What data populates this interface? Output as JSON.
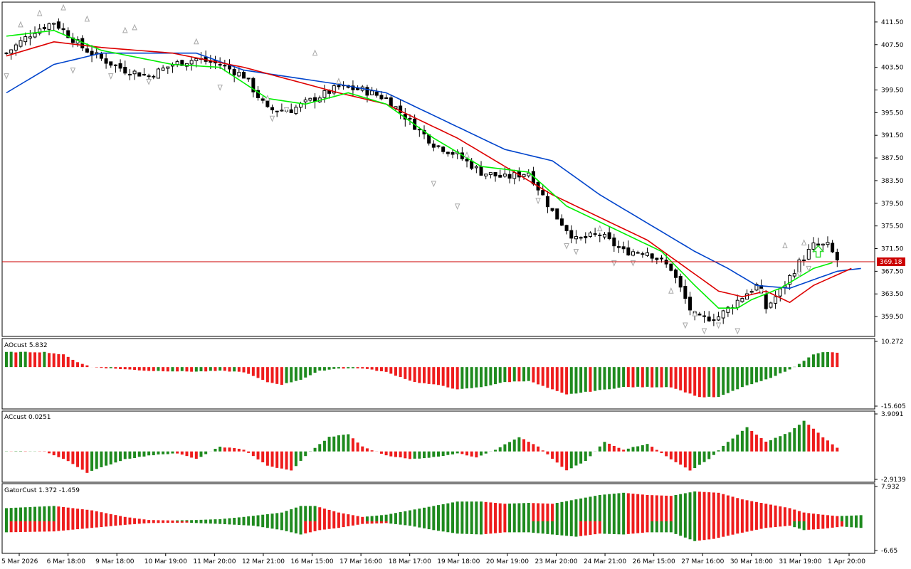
{
  "colors": {
    "background": "#ffffff",
    "frame": "#000000",
    "bull_body": "#ffffff",
    "bear_body": "#000000",
    "alligator_lips": "#00ee00",
    "alligator_teeth": "#dd0000",
    "alligator_jaw": "#0044cc",
    "histogram_up": "#1e8a1e",
    "histogram_down": "#ee1c1c",
    "price_line": "#cc0000",
    "price_tag_bg": "#cc0000",
    "price_tag_text": "#ffffff",
    "fractal": "#a8a8a8",
    "signal_arrow": "#33dd33"
  },
  "chart_data": [
    {
      "type": "candlestick",
      "pane": "main",
      "ylim": [
        356.5,
        414.5
      ],
      "y_ticks": [
        "411.50",
        "407.50",
        "403.50",
        "399.50",
        "395.50",
        "391.50",
        "387.50",
        "383.50",
        "379.50",
        "375.50",
        "371.50",
        "367.50",
        "363.50",
        "359.50"
      ],
      "current_price": "369.18",
      "x_ticks": [
        "5 Mar 2026",
        "6 Mar 18:00",
        "9 Mar 18:00",
        "10 Mar 19:00",
        "11 Mar 20:00",
        "12 Mar 21:00",
        "16 Mar 15:00",
        "17 Mar 16:00",
        "18 Mar 17:00",
        "19 Mar 18:00",
        "20 Mar 19:00",
        "23 Mar 20:00",
        "24 Mar 21:00",
        "26 Mar 15:00",
        "27 Mar 16:00",
        "30 Mar 18:00",
        "31 Mar 19:00",
        "1 Apr 20:00"
      ],
      "close_path": [
        [
          0,
          406
        ],
        [
          6,
          410
        ],
        [
          10,
          411.5
        ],
        [
          16,
          407
        ],
        [
          20,
          405
        ],
        [
          25,
          403
        ],
        [
          30,
          402
        ],
        [
          35,
          404
        ],
        [
          40,
          405
        ],
        [
          45,
          404
        ],
        [
          50,
          402
        ],
        [
          55,
          396
        ],
        [
          60,
          396
        ],
        [
          65,
          398
        ],
        [
          70,
          400
        ],
        [
          75,
          399.5
        ],
        [
          80,
          398
        ],
        [
          85,
          394
        ],
        [
          90,
          390
        ],
        [
          95,
          388
        ],
        [
          100,
          385
        ],
        [
          105,
          384
        ],
        [
          110,
          385
        ],
        [
          115,
          378
        ],
        [
          120,
          373
        ],
        [
          125,
          374
        ],
        [
          130,
          371
        ],
        [
          135,
          371
        ],
        [
          140,
          368
        ],
        [
          145,
          359
        ],
        [
          150,
          359.5
        ],
        [
          155,
          363
        ],
        [
          158,
          365
        ],
        [
          160,
          361
        ],
        [
          163,
          364
        ],
        [
          167,
          369
        ],
        [
          170,
          372
        ],
        [
          173,
          372
        ],
        [
          175,
          369.5
        ]
      ],
      "alligator_jaw": [
        [
          0,
          399
        ],
        [
          10,
          404
        ],
        [
          20,
          406
        ],
        [
          40,
          406
        ],
        [
          50,
          403
        ],
        [
          70,
          400.5
        ],
        [
          80,
          399
        ],
        [
          95,
          393
        ],
        [
          105,
          389
        ],
        [
          115,
          387
        ],
        [
          125,
          381
        ],
        [
          135,
          376
        ],
        [
          145,
          371
        ],
        [
          152,
          368
        ],
        [
          158,
          365
        ],
        [
          165,
          364.5
        ],
        [
          175,
          367.5
        ],
        [
          180,
          368
        ]
      ],
      "alligator_teeth": [
        [
          0,
          405.5
        ],
        [
          10,
          408
        ],
        [
          20,
          407
        ],
        [
          35,
          406
        ],
        [
          50,
          403.5
        ],
        [
          70,
          399
        ],
        [
          80,
          397
        ],
        [
          95,
          391
        ],
        [
          105,
          386
        ],
        [
          115,
          381
        ],
        [
          125,
          377
        ],
        [
          135,
          373
        ],
        [
          145,
          367
        ],
        [
          150,
          364
        ],
        [
          155,
          363
        ],
        [
          160,
          364
        ],
        [
          165,
          362
        ],
        [
          170,
          365
        ],
        [
          178,
          368
        ]
      ],
      "alligator_lips": [
        [
          0,
          409
        ],
        [
          10,
          410
        ],
        [
          20,
          406.5
        ],
        [
          35,
          404
        ],
        [
          45,
          403.5
        ],
        [
          55,
          398
        ],
        [
          63,
          397
        ],
        [
          72,
          399
        ],
        [
          80,
          397
        ],
        [
          90,
          391
        ],
        [
          100,
          386
        ],
        [
          110,
          385
        ],
        [
          118,
          379
        ],
        [
          128,
          375
        ],
        [
          138,
          371
        ],
        [
          145,
          365
        ],
        [
          150,
          361
        ],
        [
          154,
          361
        ],
        [
          157,
          362.5
        ],
        [
          163,
          364.5
        ],
        [
          166,
          366
        ],
        [
          170,
          368
        ],
        [
          174,
          369
        ]
      ],
      "fractals_up": [
        [
          3,
          411
        ],
        [
          7,
          413
        ],
        [
          12,
          414
        ],
        [
          17,
          412
        ],
        [
          25,
          410
        ],
        [
          27,
          410.5
        ],
        [
          40,
          408
        ],
        [
          55,
          398
        ],
        [
          65,
          406
        ],
        [
          70,
          401
        ],
        [
          97,
          388
        ],
        [
          125,
          375
        ],
        [
          140,
          364
        ],
        [
          145,
          360
        ],
        [
          164,
          372
        ],
        [
          168,
          372.5
        ]
      ],
      "fractals_down": [
        [
          0,
          402
        ],
        [
          14,
          403
        ],
        [
          22,
          402
        ],
        [
          30,
          401
        ],
        [
          45,
          400
        ],
        [
          56,
          394.5
        ],
        [
          59,
          396
        ],
        [
          90,
          383
        ],
        [
          95,
          379
        ],
        [
          112,
          380
        ],
        [
          118,
          372
        ],
        [
          120,
          371
        ],
        [
          128,
          369
        ],
        [
          132,
          369
        ],
        [
          143,
          358
        ],
        [
          147,
          357
        ],
        [
          150,
          358
        ],
        [
          154,
          357
        ],
        [
          159,
          364
        ],
        [
          167,
          367
        ],
        [
          169,
          368
        ]
      ],
      "signal_arrow_up_at": 171
    },
    {
      "type": "histogram",
      "pane": "AO",
      "label": "AOcust 5.832",
      "ylim": [
        -15.605,
        10.272
      ],
      "y_ticks": [
        "10.272",
        "-15.605"
      ],
      "path": [
        [
          0,
          6
        ],
        [
          8,
          6
        ],
        [
          12,
          5
        ],
        [
          15,
          2
        ],
        [
          18,
          0
        ],
        [
          22,
          -0.5
        ],
        [
          30,
          -1.5
        ],
        [
          40,
          -1.8
        ],
        [
          45,
          -1.5
        ],
        [
          50,
          -2
        ],
        [
          55,
          -6
        ],
        [
          58,
          -7
        ],
        [
          62,
          -5
        ],
        [
          66,
          -1.5
        ],
        [
          70,
          -0.5
        ],
        [
          75,
          -0.5
        ],
        [
          80,
          -2
        ],
        [
          86,
          -6
        ],
        [
          92,
          -7.5
        ],
        [
          95,
          -9
        ],
        [
          100,
          -8
        ],
        [
          105,
          -6
        ],
        [
          110,
          -5.5
        ],
        [
          115,
          -9
        ],
        [
          118,
          -11
        ],
        [
          122,
          -10
        ],
        [
          130,
          -8
        ],
        [
          140,
          -8
        ],
        [
          146,
          -12
        ],
        [
          150,
          -12
        ],
        [
          155,
          -8
        ],
        [
          160,
          -5
        ],
        [
          165,
          -1
        ],
        [
          170,
          5
        ],
        [
          172,
          6
        ],
        [
          175,
          5.8
        ]
      ]
    },
    {
      "type": "histogram",
      "pane": "AC",
      "label": "ACcust 0.0251",
      "ylim": [
        -2.9139,
        3.9091
      ],
      "y_ticks": [
        "3.9091",
        "-2.9139"
      ],
      "path": [
        [
          0,
          0
        ],
        [
          8,
          0
        ],
        [
          13,
          -1
        ],
        [
          17,
          -2.2
        ],
        [
          21,
          -1.5
        ],
        [
          25,
          -0.8
        ],
        [
          32,
          -0.3
        ],
        [
          36,
          -0.2
        ],
        [
          40,
          -0.8
        ],
        [
          45,
          0.5
        ],
        [
          50,
          0.2
        ],
        [
          55,
          -1.5
        ],
        [
          60,
          -2
        ],
        [
          64,
          0
        ],
        [
          68,
          1.5
        ],
        [
          72,
          1.8
        ],
        [
          75,
          0.5
        ],
        [
          80,
          -0.4
        ],
        [
          85,
          -0.8
        ],
        [
          90,
          -0.6
        ],
        [
          95,
          -0.2
        ],
        [
          99,
          -0.6
        ],
        [
          103,
          0.2
        ],
        [
          108,
          1.5
        ],
        [
          112,
          0.5
        ],
        [
          118,
          -2
        ],
        [
          122,
          -1
        ],
        [
          126,
          1
        ],
        [
          130,
          0.2
        ],
        [
          135,
          0.8
        ],
        [
          139,
          -0.5
        ],
        [
          144,
          -2
        ],
        [
          148,
          -0.8
        ],
        [
          152,
          1
        ],
        [
          156,
          2.5
        ],
        [
          160,
          1
        ],
        [
          165,
          2
        ],
        [
          168,
          3.2
        ],
        [
          172,
          1.5
        ],
        [
          176,
          0
        ]
      ]
    },
    {
      "type": "histogram",
      "pane": "Gator",
      "label": "GatorCust 1.372 -1.459",
      "ylim": [
        -6.65,
        7.932
      ],
      "y_ticks": [
        "7.932",
        "-6.65"
      ],
      "upper": [
        [
          0,
          3
        ],
        [
          10,
          3.5
        ],
        [
          18,
          2.5
        ],
        [
          25,
          1
        ],
        [
          30,
          0.3
        ],
        [
          35,
          0.2
        ],
        [
          40,
          0.3
        ],
        [
          45,
          0.5
        ],
        [
          50,
          1
        ],
        [
          58,
          2
        ],
        [
          62,
          3.5
        ],
        [
          65,
          3.5
        ],
        [
          70,
          2
        ],
        [
          75,
          1
        ],
        [
          80,
          1.5
        ],
        [
          85,
          2.5
        ],
        [
          90,
          3.5
        ],
        [
          95,
          4.5
        ],
        [
          100,
          4.5
        ],
        [
          105,
          4
        ],
        [
          110,
          4.2
        ],
        [
          115,
          4
        ],
        [
          120,
          5
        ],
        [
          125,
          6
        ],
        [
          130,
          6.5
        ],
        [
          135,
          6
        ],
        [
          140,
          5.8
        ],
        [
          145,
          6.8
        ],
        [
          150,
          6.5
        ],
        [
          155,
          5
        ],
        [
          160,
          4
        ],
        [
          165,
          3
        ],
        [
          168,
          2
        ],
        [
          172,
          1.5
        ],
        [
          175,
          1.2
        ],
        [
          178,
          1.3
        ],
        [
          180,
          1.4
        ]
      ],
      "lower": [
        [
          0,
          -2.5
        ],
        [
          10,
          -2.3
        ],
        [
          18,
          -1.5
        ],
        [
          25,
          -0.8
        ],
        [
          30,
          -0.4
        ],
        [
          38,
          -0.3
        ],
        [
          45,
          -0.6
        ],
        [
          52,
          -1
        ],
        [
          58,
          -2
        ],
        [
          62,
          -3
        ],
        [
          66,
          -2
        ],
        [
          70,
          -1.5
        ],
        [
          75,
          -0.6
        ],
        [
          80,
          -0.4
        ],
        [
          85,
          -1
        ],
        [
          90,
          -2
        ],
        [
          95,
          -2.8
        ],
        [
          100,
          -3
        ],
        [
          105,
          -2.5
        ],
        [
          110,
          -2.5
        ],
        [
          115,
          -3
        ],
        [
          120,
          -3.5
        ],
        [
          125,
          -2.8
        ],
        [
          130,
          -3
        ],
        [
          135,
          -2.5
        ],
        [
          140,
          -2.5
        ],
        [
          145,
          -4.5
        ],
        [
          149,
          -4
        ],
        [
          154,
          -2.8
        ],
        [
          160,
          -1.5
        ],
        [
          165,
          -1
        ],
        [
          168,
          -2
        ],
        [
          172,
          -1.7
        ],
        [
          176,
          -1.2
        ],
        [
          180,
          -1.5
        ]
      ]
    }
  ]
}
